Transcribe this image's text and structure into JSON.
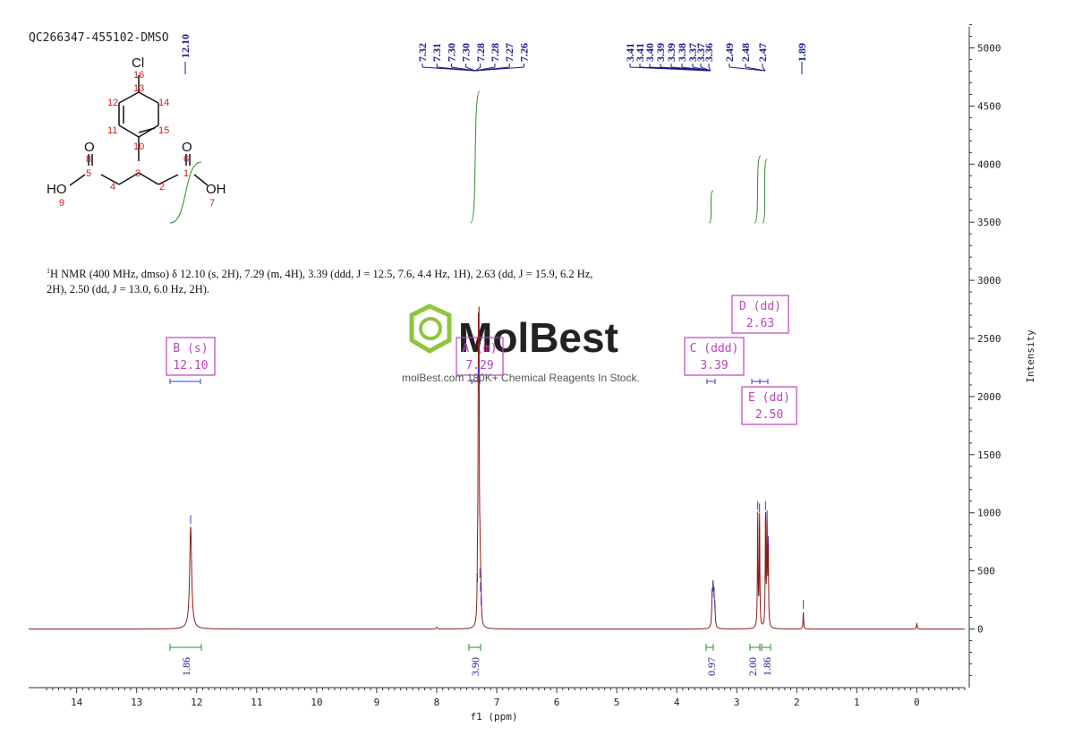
{
  "sample_id": "QC266347-455102-DMSO",
  "description": {
    "nucleus": "1",
    "rest": "H NMR (400 MHz, dmso) δ 12.10 (s, 2H), 7.29 (m, 4H), 3.39 (ddd, J = 12.5, 7.6, 4.4 Hz, 1H), 2.63 (dd, J = 15.9, 6.2 Hz, 2H), 2.50 (dd, J = 13.0, 6.0 Hz, 2H)."
  },
  "watermark": {
    "brand": "MolBest",
    "tagline": "molBest.com 180K+ Chemical Reagents In Stock.",
    "color": "#8dc63f"
  },
  "colors": {
    "spectrum": "#8b1a1a",
    "peak_labels": "#1a1a8c",
    "integrals": "#2e8b2e",
    "multiplets": "#c040c0",
    "axis": "#333333",
    "molecule": "#d01c1c"
  },
  "molecule": {
    "atoms": [
      "Cl",
      "16",
      "13",
      "12",
      "14",
      "11",
      "15",
      "10",
      "3",
      "O",
      "8",
      "5",
      "4",
      "2",
      "O",
      "6",
      "1",
      "HO",
      "9",
      "OH",
      "7"
    ]
  },
  "chart_data": {
    "type": "line",
    "title": "",
    "xlabel": "f1 (ppm)",
    "ylabel": "Intensity",
    "xlim": [
      14.8,
      -0.8
    ],
    "ylim": [
      -500,
      5200
    ],
    "x_ticks": [
      14,
      13,
      12,
      11,
      10,
      9,
      8,
      7,
      6,
      5,
      4,
      3,
      2,
      1,
      0
    ],
    "y_ticks": [
      0,
      500,
      1000,
      1500,
      2000,
      2500,
      3000,
      3500,
      4000,
      4500,
      5000
    ],
    "peaks": [
      {
        "ppm": 12.1,
        "height": 880,
        "width": 0.02
      },
      {
        "ppm": 7.32,
        "height": 380,
        "width": 0.006
      },
      {
        "ppm": 7.305,
        "height": 2150,
        "width": 0.006
      },
      {
        "ppm": 7.295,
        "height": 2150,
        "width": 0.006
      },
      {
        "ppm": 7.28,
        "height": 420,
        "width": 0.006
      },
      {
        "ppm": 7.27,
        "height": 300,
        "width": 0.006
      },
      {
        "ppm": 7.26,
        "height": 180,
        "width": 0.006
      },
      {
        "ppm": 3.41,
        "height": 250,
        "width": 0.008
      },
      {
        "ppm": 3.395,
        "height": 300,
        "width": 0.008
      },
      {
        "ppm": 3.38,
        "height": 250,
        "width": 0.008
      },
      {
        "ppm": 3.365,
        "height": 150,
        "width": 0.008
      },
      {
        "ppm": 2.65,
        "height": 1000,
        "width": 0.006
      },
      {
        "ppm": 2.62,
        "height": 980,
        "width": 0.006
      },
      {
        "ppm": 2.52,
        "height": 1000,
        "width": 0.006
      },
      {
        "ppm": 2.495,
        "height": 920,
        "width": 0.006
      },
      {
        "ppm": 2.475,
        "height": 700,
        "width": 0.006
      },
      {
        "ppm": 1.89,
        "height": 150,
        "width": 0.006
      },
      {
        "ppm": 8.0,
        "height": 15,
        "width": 0.01
      },
      {
        "ppm": 0.0,
        "height": 50,
        "width": 0.006
      }
    ],
    "peak_labels": [
      {
        "group": "left",
        "labels": [
          "12.10"
        ],
        "ppm": [
          12.1
        ]
      },
      {
        "group": "aromatic",
        "labels": [
          "7.32",
          "7.31",
          "7.30",
          "7.30",
          "7.28",
          "7.28",
          "7.27",
          "7.26"
        ],
        "ppm": [
          7.32,
          7.31,
          7.3,
          7.295,
          7.285,
          7.28,
          7.27,
          7.26
        ]
      },
      {
        "group": "aliphatic",
        "labels": [
          "3.41",
          "3.41",
          "3.40",
          "3.39",
          "3.39",
          "3.38",
          "3.37",
          "3.37",
          "3.36",
          "2.49",
          "2.48",
          "2.47",
          "1.89"
        ],
        "ppm": [
          3.41,
          3.405,
          3.4,
          3.395,
          3.39,
          3.38,
          3.375,
          3.37,
          3.36,
          2.49,
          2.48,
          2.47,
          1.89
        ]
      }
    ],
    "multiplets": [
      {
        "name": "B (s)",
        "value": "12.10",
        "ppm": 12.1,
        "range": [
          12.35,
          11.85
        ]
      },
      {
        "name": "A (m)",
        "value": "7.29",
        "ppm": 7.29,
        "range": [
          7.33,
          7.25
        ]
      },
      {
        "name": "C (ddd)",
        "value": "3.39",
        "ppm": 3.39,
        "range": [
          3.45,
          3.33
        ]
      },
      {
        "name": "D (dd)",
        "value": "2.63",
        "ppm": 2.63,
        "range": [
          2.68,
          2.58
        ]
      },
      {
        "name": "E (dd)",
        "value": "2.50",
        "ppm": 2.5,
        "range": [
          2.54,
          2.45
        ]
      }
    ],
    "integrals": [
      {
        "label": "1.86",
        "range": [
          12.35,
          11.85
        ]
      },
      {
        "label": "3.90",
        "range": [
          7.33,
          7.23
        ]
      },
      {
        "label": "0.97",
        "range": [
          3.43,
          3.35
        ]
      },
      {
        "label": "2.00",
        "range": [
          2.68,
          2.59
        ]
      },
      {
        "label": "1.86",
        "range": [
          2.55,
          2.45
        ]
      }
    ]
  }
}
